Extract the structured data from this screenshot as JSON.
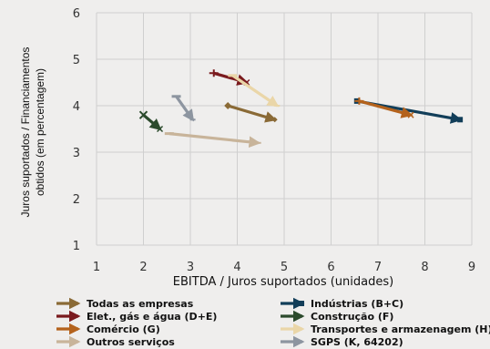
{
  "chart_data": {
    "type": "scatter",
    "title": "",
    "xlabel": "EBITDA / Juros suportados (unidades)",
    "ylabel_lines": [
      "Juros suportados / Financiamentos",
      "obtidos (em percentagem)"
    ],
    "xlim": [
      1,
      9
    ],
    "ylim": [
      1,
      6
    ],
    "xticks": [
      1,
      2,
      3,
      4,
      5,
      6,
      7,
      8,
      9
    ],
    "yticks": [
      1,
      2,
      3,
      4,
      5,
      6
    ],
    "grid": true,
    "legend_position": "bottom",
    "series": [
      {
        "name": "Todas as empresas",
        "color": "#8a6a36",
        "marker": "diamond",
        "x": [
          3.8,
          4.8
        ],
        "y": [
          4.0,
          3.7
        ]
      },
      {
        "name": "Indústrias (B+C)",
        "color": "#123e59",
        "marker": "square",
        "x": [
          6.55,
          8.75
        ],
        "y": [
          4.1,
          3.7
        ]
      },
      {
        "name": "Elet., gás e água (D+E)",
        "color": "#7a1a1e",
        "marker": "cross",
        "x": [
          3.5,
          4.2
        ],
        "y": [
          4.7,
          4.5
        ]
      },
      {
        "name": "Construção (F)",
        "color": "#2b4a2c",
        "marker": "x",
        "x": [
          2.0,
          2.35
        ],
        "y": [
          3.8,
          3.5
        ]
      },
      {
        "name": "Comércio (G)",
        "color": "#b4621c",
        "marker": "cross",
        "x": [
          6.6,
          7.7
        ],
        "y": [
          4.1,
          3.8
        ]
      },
      {
        "name": "Transportes e armazenagem (H)",
        "color": "#ead6a8",
        "marker": "dash",
        "x": [
          3.9,
          4.85
        ],
        "y": [
          4.65,
          4.0
        ]
      },
      {
        "name": "Outros serviços",
        "color": "#c8b49a",
        "marker": "dash",
        "x": [
          2.55,
          4.45
        ],
        "y": [
          3.4,
          3.2
        ]
      },
      {
        "name": "SGPS (K, 64202)",
        "color": "#8d95a0",
        "marker": "dash",
        "x": [
          2.7,
          3.05
        ],
        "y": [
          4.2,
          3.7
        ]
      }
    ]
  }
}
